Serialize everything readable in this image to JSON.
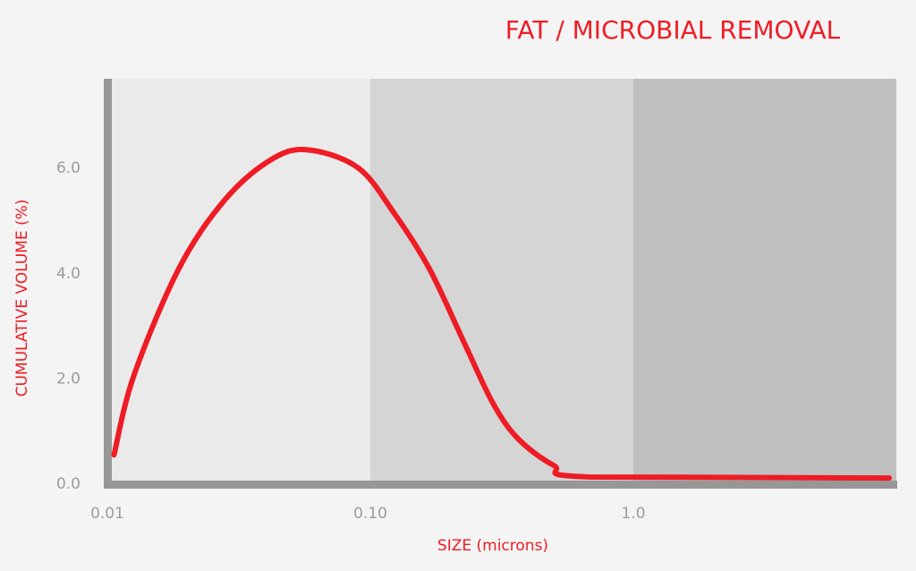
{
  "chart_data": {
    "type": "line",
    "title": "FAT / MICROBIAL REMOVAL",
    "xlabel": "SIZE (microns)",
    "ylabel": "CUMULATIVE VOLUME (%)",
    "x_scale": "log",
    "xlim": [
      0.01,
      10
    ],
    "ylim": [
      0,
      7.7
    ],
    "x_ticks": [
      {
        "value": 0.01,
        "label": "0.01"
      },
      {
        "value": 0.1,
        "label": "0.10"
      },
      {
        "value": 1,
        "label": "1.0"
      }
    ],
    "y_ticks": [
      {
        "value": 0,
        "label": "0.0"
      },
      {
        "value": 2,
        "label": "2.0"
      },
      {
        "value": 4,
        "label": "4.0"
      },
      {
        "value": 6,
        "label": "6.0"
      }
    ],
    "grid": false,
    "bands": [
      {
        "from": 0.01,
        "to": 0.1,
        "color": "#ebeaea"
      },
      {
        "from": 0.1,
        "to": 1,
        "color": "#d5d5d5"
      },
      {
        "from": 1,
        "to": 10,
        "color": "#c0c0c1"
      }
    ],
    "series": [
      {
        "color": "#ee1c25",
        "x": [
          0.0106,
          0.0126,
          0.0187,
          0.0277,
          0.041,
          0.057,
          0.0895,
          0.1225,
          0.1675,
          0.2275,
          0.292,
          0.364,
          0.498,
          0.68,
          9.4
        ],
        "y": [
          0.54,
          2.04,
          4.08,
          5.36,
          6.12,
          6.34,
          6.0,
          5.15,
          4.08,
          2.67,
          1.53,
          0.85,
          0.34,
          0.12,
          0.1
        ]
      }
    ],
    "title_color": "#ee1c25",
    "axis_color": "#979797"
  }
}
